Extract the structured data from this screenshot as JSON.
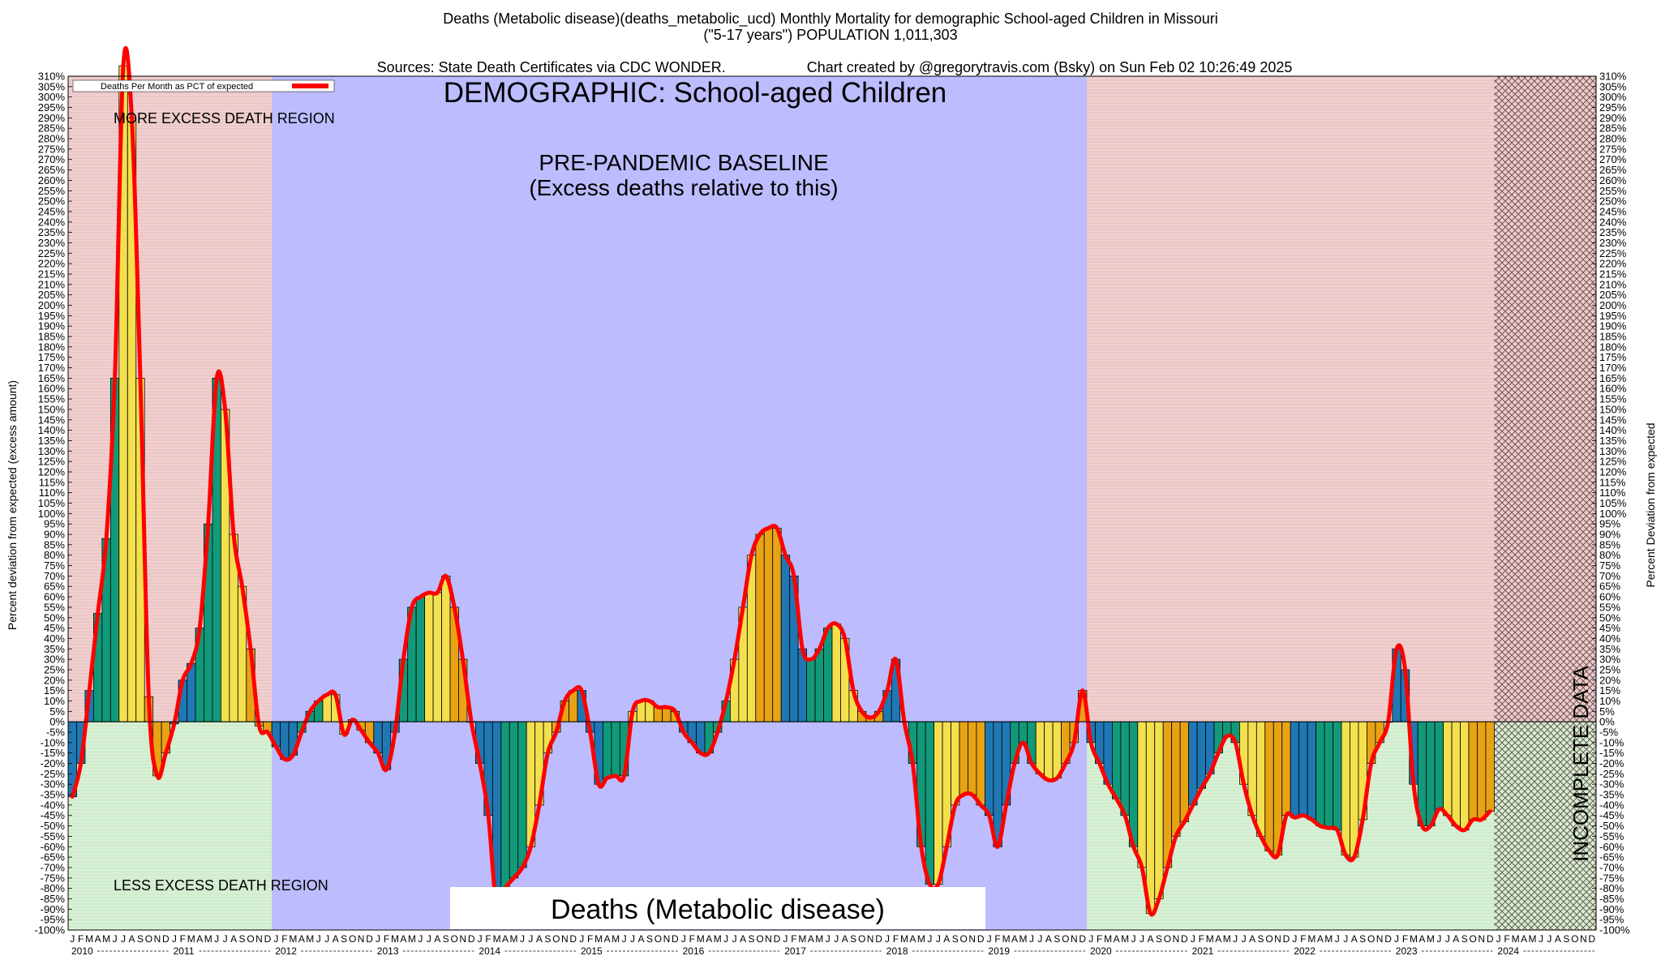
{
  "header": {
    "line1": "Deaths (Metabolic disease)(deaths_metabolic_ucd) Monthly Mortality for demographic School-aged Children in Missouri",
    "line2": "(\"5-17 years\") POPULATION 1,011,303",
    "line3_left": "Sources: State Death Certificates via CDC WONDER.",
    "line3_right": "Chart created by @gregorytravis.com (Bsky) on Sun Feb 02 10:26:49 2025"
  },
  "colors": {
    "excess_region": "#ecc6c6",
    "less_region": "#cfeccc",
    "baseline_region": "#bcbcff",
    "line": "#ff0000",
    "bar_blue": "#1f78b4",
    "bar_green": "#119a7a",
    "bar_yellow": "#f4e04d",
    "bar_orange": "#e8a314",
    "hatch": "#8a6a6a"
  },
  "chart_data": {
    "type": "bar",
    "title": "DEMOGRAPHIC: School-aged Children",
    "legend_label": "Deaths Per Month as PCT of expected",
    "ylabel_left": "Percent deviation from expected (excess amount)",
    "ylabel_right": "Percent Deviation from expected",
    "ylim": [
      -100,
      310
    ],
    "ytick_step": 5,
    "region_labels": {
      "more": "MORE EXCESS DEATH REGION",
      "less": "LESS EXCESS DEATH REGION",
      "baseline_1": "PRE-PANDEMIC BASELINE",
      "baseline_2": "(Excess deaths relative to this)",
      "incomplete": "INCOMPLETE DATA"
    },
    "bottom_label": "Deaths (Metabolic disease)",
    "month_letters": [
      "J",
      "F",
      "M",
      "A",
      "M",
      "J",
      "J",
      "A",
      "S",
      "O",
      "N",
      "D"
    ],
    "years": [
      "2010",
      "2011",
      "2012",
      "2013",
      "2014",
      "2015",
      "2016",
      "2017",
      "2018",
      "2019",
      "2020",
      "2021",
      "2022",
      "2023",
      "2024"
    ],
    "regions": [
      {
        "name": "pre-2012",
        "from_month": 0,
        "to_month": 24
      },
      {
        "name": "baseline",
        "from_month": 24,
        "to_month": 120
      },
      {
        "name": "pandemic",
        "from_month": 120,
        "to_month": 168
      },
      {
        "name": "incomplete",
        "from_month": 168,
        "to_month": 180
      }
    ],
    "series": [
      {
        "values": [
          -36,
          -20,
          15,
          52,
          88,
          165,
          315,
          290,
          165,
          12,
          -26,
          -15,
          -1,
          20,
          28,
          45,
          95,
          165,
          150,
          90,
          65,
          35,
          -2,
          -5,
          -12,
          -18,
          -16,
          -5,
          5,
          10,
          13,
          13,
          -6,
          1,
          -4,
          -10,
          -15,
          -23,
          -5,
          30,
          55,
          60,
          62,
          62,
          70,
          55,
          30,
          0,
          -20,
          -45,
          -90,
          -80,
          -75,
          -70,
          -60,
          -40,
          -15,
          -5,
          10,
          15,
          15,
          -5,
          -30,
          -27,
          -26,
          -26,
          5,
          10,
          10,
          7,
          7,
          5,
          -5,
          -10,
          -15,
          -15,
          -5,
          10,
          30,
          55,
          80,
          90,
          93,
          93,
          80,
          70,
          35,
          30,
          35,
          45,
          47,
          40,
          15,
          5,
          2,
          5,
          15,
          30,
          0,
          -20,
          -60,
          -78,
          -78,
          -60,
          -40,
          -35,
          -35,
          -40,
          -45,
          -60,
          -40,
          -20,
          -10,
          -20,
          -25,
          -28,
          -27,
          -20,
          -10,
          15,
          -10,
          -20,
          -30,
          -37,
          -45,
          -60,
          -70,
          -92,
          -85,
          -70,
          -55,
          -48,
          -40,
          -32,
          -25,
          -15,
          -7,
          -10,
          -30,
          -45,
          -55,
          -62,
          -64,
          -45,
          -46,
          -45,
          -47,
          -50,
          -51,
          -52,
          -64,
          -65,
          -47,
          -20,
          -10,
          0,
          35,
          25,
          -30,
          -50,
          -50,
          -42,
          -45,
          -50,
          -52,
          -47,
          -47,
          -43
        ]
      }
    ]
  }
}
